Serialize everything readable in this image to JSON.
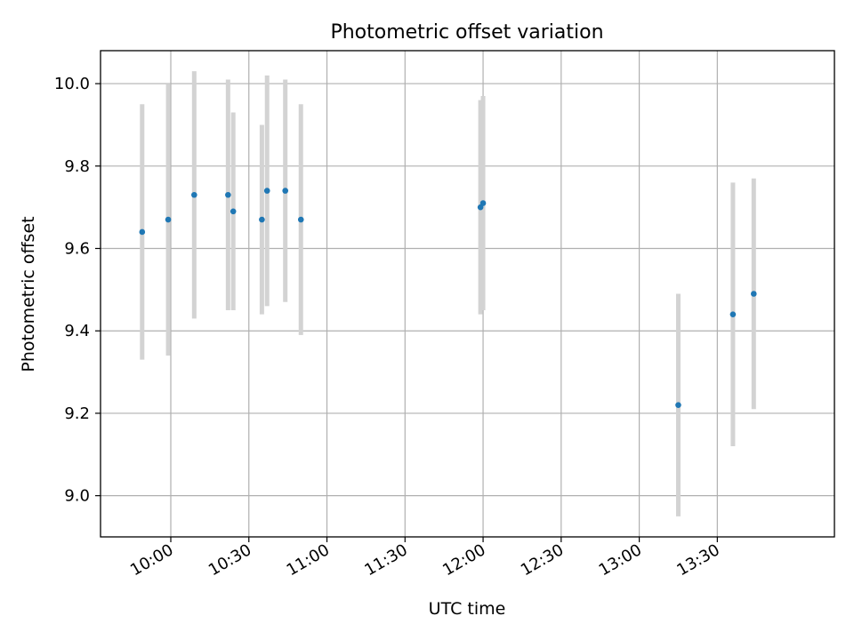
{
  "chart_data": {
    "type": "scatter",
    "title": "Photometric offset variation",
    "xlabel": "UTC time",
    "ylabel": "Photometric offset",
    "x_ticks": [
      "10:00",
      "10:30",
      "11:00",
      "11:30",
      "12:00",
      "12:30",
      "13:00",
      "13:30"
    ],
    "y_ticks": [
      "9.0",
      "9.2",
      "9.4",
      "9.6",
      "9.8",
      "10.0"
    ],
    "xlim": [
      "09:33",
      "14:15"
    ],
    "ylim": [
      8.9,
      10.08
    ],
    "grid": true,
    "colors": {
      "points": "#1f77b4",
      "errorbars": "#d3d3d3",
      "grid": "#b0b0b0"
    },
    "series": [
      {
        "points": [
          {
            "time": "09:49",
            "y": 9.64,
            "err": 0.31
          },
          {
            "time": "09:59",
            "y": 9.67,
            "err": 0.33
          },
          {
            "time": "10:09",
            "y": 9.73,
            "err": 0.3
          },
          {
            "time": "10:22",
            "y": 9.73,
            "err": 0.28
          },
          {
            "time": "10:24",
            "y": 9.69,
            "err": 0.24
          },
          {
            "time": "10:35",
            "y": 9.67,
            "err": 0.23
          },
          {
            "time": "10:37",
            "y": 9.74,
            "err": 0.28
          },
          {
            "time": "10:44",
            "y": 9.74,
            "err": 0.27
          },
          {
            "time": "10:50",
            "y": 9.67,
            "err": 0.28
          },
          {
            "time": "11:59",
            "y": 9.7,
            "err": 0.26
          },
          {
            "time": "12:00",
            "y": 9.71,
            "err": 0.26
          },
          {
            "time": "13:15",
            "y": 9.22,
            "err": 0.27
          },
          {
            "time": "13:36",
            "y": 9.44,
            "err": 0.32
          },
          {
            "time": "13:44",
            "y": 9.49,
            "err": 0.28
          }
        ]
      }
    ]
  }
}
